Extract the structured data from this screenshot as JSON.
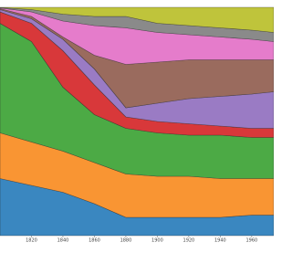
{
  "chart_data": {
    "type": "stacked-area",
    "x": [
      1800,
      1820,
      1840,
      1860,
      1880,
      1900,
      1920,
      1940,
      1960,
      1974
    ],
    "xlim": [
      1800,
      1974
    ],
    "xticks": [
      1820,
      1840,
      1860,
      1880,
      1900,
      1920,
      1940,
      1960
    ],
    "ylim": [
      0,
      100
    ],
    "series": [
      {
        "color": "#3a87c0",
        "values": [
          25,
          22,
          19,
          14,
          8,
          8,
          8,
          8,
          9,
          9
        ]
      },
      {
        "color": "#f99533",
        "values": [
          20,
          19,
          18,
          18,
          19,
          18,
          18,
          17,
          16,
          16
        ]
      },
      {
        "color": "#4caa45",
        "values": [
          48,
          44,
          28,
          21,
          20,
          19,
          18,
          19,
          18,
          18
        ]
      },
      {
        "color": "#d8383a",
        "values": [
          5,
          8,
          16,
          13,
          5,
          5,
          5,
          4,
          4,
          4
        ]
      },
      {
        "color": "#9a7bc4",
        "values": [
          1,
          2,
          5,
          7,
          4,
          8,
          11,
          13,
          15,
          16
        ]
      },
      {
        "color": "#9a6b5e",
        "values": [
          0.4,
          1,
          1,
          6,
          19,
          18,
          17,
          16,
          15,
          14
        ]
      },
      {
        "color": "#e57ccb",
        "values": [
          0.3,
          2,
          7,
          13,
          16,
          13,
          11,
          10,
          9,
          8
        ]
      },
      {
        "color": "#8a8a8a",
        "values": [
          0.2,
          1,
          3,
          4,
          5,
          4,
          4,
          4,
          4,
          4
        ]
      },
      {
        "color": "#bfc43b",
        "values": [
          0.1,
          1,
          3,
          4,
          4,
          7,
          8,
          9,
          10,
          11
        ]
      }
    ]
  }
}
